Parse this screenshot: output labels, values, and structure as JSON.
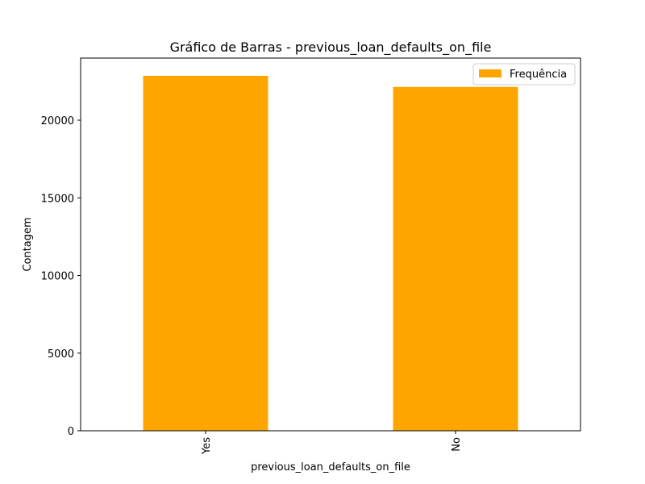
{
  "chart_data": {
    "type": "bar",
    "title": "Gráfico de Barras - previous_loan_defaults_on_file",
    "xlabel": "previous_loan_defaults_on_file",
    "ylabel": "Contagem",
    "categories": [
      "Yes",
      "No"
    ],
    "series": [
      {
        "name": "Frequência",
        "values": [
          22858,
          22142
        ]
      }
    ],
    "ylim": [
      0,
      24000
    ],
    "yticks": [
      0,
      5000,
      10000,
      15000,
      20000
    ],
    "bar_color": "#ffa500",
    "legend": "top-right",
    "grid": false
  }
}
